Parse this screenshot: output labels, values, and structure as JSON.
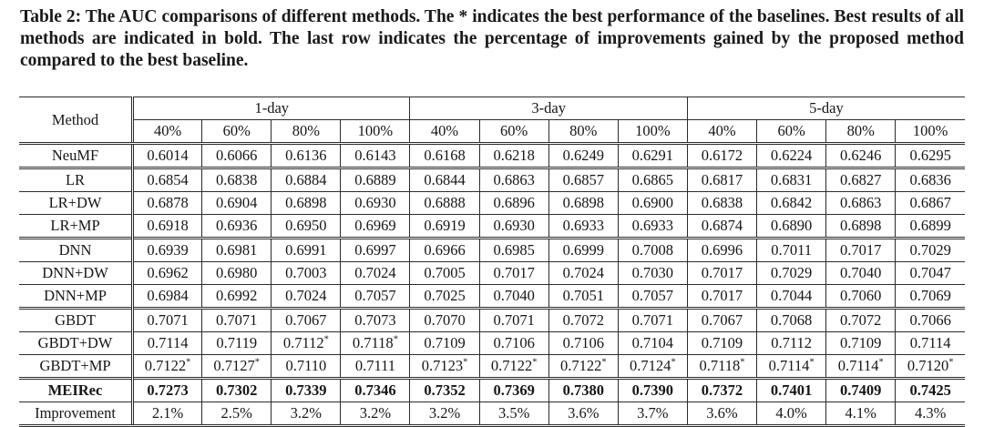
{
  "colors": {
    "background": "#ffffff",
    "text": "#111111",
    "border": "#2b2b2b"
  },
  "caption": {
    "text": "Table 2: The AUC comparisons of different methods. The * indicates the best performance of the baselines. Best results of all methods are indicated in bold. The last row indicates the percentage of improvements gained by the proposed method compared to the best baseline."
  },
  "table": {
    "method_header": "Method",
    "day_groups": [
      "1-day",
      "3-day",
      "5-day"
    ],
    "sub_headers": [
      "40%",
      "60%",
      "80%",
      "100%"
    ],
    "rows": [
      {
        "method": "NeuMF",
        "rule_above": "double",
        "bold": false,
        "last": false,
        "values": [
          "0.6014",
          "0.6066",
          "0.6136",
          "0.6143",
          "0.6168",
          "0.6218",
          "0.6249",
          "0.6291",
          "0.6172",
          "0.6224",
          "0.6246",
          "0.6295"
        ]
      },
      {
        "method": "LR",
        "rule_above": "double",
        "bold": false,
        "last": false,
        "values": [
          "0.6854",
          "0.6838",
          "0.6884",
          "0.6889",
          "0.6844",
          "0.6863",
          "0.6857",
          "0.6865",
          "0.6817",
          "0.6831",
          "0.6827",
          "0.6836"
        ]
      },
      {
        "method": "LR+DW",
        "rule_above": "single",
        "bold": false,
        "last": false,
        "values": [
          "0.6878",
          "0.6904",
          "0.6898",
          "0.6930",
          "0.6888",
          "0.6896",
          "0.6898",
          "0.6900",
          "0.6838",
          "0.6842",
          "0.6863",
          "0.6867"
        ]
      },
      {
        "method": "LR+MP",
        "rule_above": "single",
        "bold": false,
        "last": false,
        "values": [
          "0.6918",
          "0.6936",
          "0.6950",
          "0.6969",
          "0.6919",
          "0.6930",
          "0.6933",
          "0.6933",
          "0.6874",
          "0.6890",
          "0.6898",
          "0.6899"
        ]
      },
      {
        "method": "DNN",
        "rule_above": "double",
        "bold": false,
        "last": false,
        "values": [
          "0.6939",
          "0.6981",
          "0.6991",
          "0.6997",
          "0.6966",
          "0.6985",
          "0.6999",
          "0.7008",
          "0.6996",
          "0.7011",
          "0.7017",
          "0.7029"
        ]
      },
      {
        "method": "DNN+DW",
        "rule_above": "single",
        "bold": false,
        "last": false,
        "values": [
          "0.6962",
          "0.6980",
          "0.7003",
          "0.7024",
          "0.7005",
          "0.7017",
          "0.7024",
          "0.7030",
          "0.7017",
          "0.7029",
          "0.7040",
          "0.7047"
        ]
      },
      {
        "method": "DNN+MP",
        "rule_above": "single",
        "bold": false,
        "last": false,
        "values": [
          "0.6984",
          "0.6992",
          "0.7024",
          "0.7057",
          "0.7025",
          "0.7040",
          "0.7051",
          "0.7057",
          "0.7017",
          "0.7044",
          "0.7060",
          "0.7069"
        ]
      },
      {
        "method": "GBDT",
        "rule_above": "double",
        "bold": false,
        "last": false,
        "values": [
          "0.7071",
          "0.7071",
          "0.7067",
          "0.7073",
          "0.7070",
          "0.7071",
          "0.7072",
          "0.7071",
          "0.7067",
          "0.7068",
          "0.7072",
          "0.7066"
        ]
      },
      {
        "method": "GBDT+DW",
        "rule_above": "single",
        "bold": false,
        "last": false,
        "values": [
          "0.7114",
          "0.7119",
          "0.7112*",
          "0.7118*",
          "0.7109",
          "0.7106",
          "0.7106",
          "0.7104",
          "0.7109",
          "0.7112",
          "0.7109",
          "0.7114"
        ]
      },
      {
        "method": "GBDT+MP",
        "rule_above": "single",
        "bold": false,
        "last": false,
        "values": [
          "0.7122*",
          "0.7127*",
          "0.7110",
          "0.7111",
          "0.7123*",
          "0.7122*",
          "0.7122*",
          "0.7124*",
          "0.7118*",
          "0.7114*",
          "0.7114*",
          "0.7120*"
        ]
      },
      {
        "method": "MEIRec",
        "rule_above": "double",
        "bold": true,
        "last": false,
        "values": [
          "0.7273",
          "0.7302",
          "0.7339",
          "0.7346",
          "0.7352",
          "0.7369",
          "0.7380",
          "0.7390",
          "0.7372",
          "0.7401",
          "0.7409",
          "0.7425"
        ]
      },
      {
        "method": "Improvement",
        "rule_above": "single",
        "bold": false,
        "last": true,
        "values": [
          "2.1%",
          "2.5%",
          "3.2%",
          "3.2%",
          "3.2%",
          "3.5%",
          "3.6%",
          "3.7%",
          "3.6%",
          "4.0%",
          "4.1%",
          "4.3%"
        ]
      }
    ]
  }
}
